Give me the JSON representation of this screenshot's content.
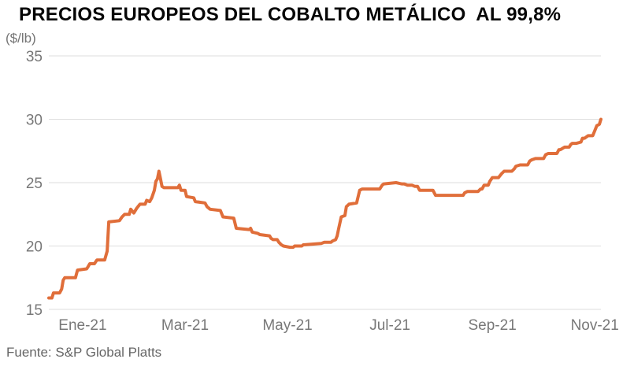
{
  "page": {
    "title": "PRECIOS EUROPEOS DEL COBALTO METÁLICO  AL 99,8%",
    "unit_label": "($/lb)",
    "source": "Fuente: S&P Global Platts"
  },
  "chart_data": {
    "type": "line",
    "title": "PRECIOS EUROPEOS DEL COBALTO METÁLICO AL 99,8%",
    "xlabel": "",
    "ylabel": "($/lb)",
    "series_name": "Precio europeo del cobalto metálico 99,8%",
    "line_color": "#E06E3A",
    "grid_color": "#DEDEDE",
    "label_color": "#787878",
    "legend": "none",
    "grid": "horizontal-only",
    "ylim": [
      15,
      35
    ],
    "y_ticks": [
      35,
      30,
      25,
      20,
      15
    ],
    "x_domain": [
      -0.66,
      10.12
    ],
    "y_domain": [
      15,
      35
    ],
    "x_unit": "months (0 = enero 2021, -0.66 ≈ mediados de diciembre 2020)",
    "x_ticks": [
      {
        "m": 0,
        "label": "Ene-21"
      },
      {
        "m": 2,
        "label": "Mar-21"
      },
      {
        "m": 4,
        "label": "May-21"
      },
      {
        "m": 6,
        "label": "Jul-21"
      },
      {
        "m": 8,
        "label": "Sep-21"
      },
      {
        "m": 10,
        "label": "Nov-21"
      }
    ],
    "points": [
      [
        -0.66,
        15.9
      ],
      [
        -0.6,
        15.9
      ],
      [
        -0.57,
        16.3
      ],
      [
        -0.45,
        16.3
      ],
      [
        -0.41,
        16.6
      ],
      [
        -0.38,
        17.3
      ],
      [
        -0.35,
        17.5
      ],
      [
        -0.14,
        17.5
      ],
      [
        -0.1,
        18.1
      ],
      [
        0.08,
        18.2
      ],
      [
        0.11,
        18.4
      ],
      [
        0.14,
        18.6
      ],
      [
        0.23,
        18.6
      ],
      [
        0.28,
        18.9
      ],
      [
        0.43,
        18.9
      ],
      [
        0.48,
        19.6
      ],
      [
        0.51,
        21.9
      ],
      [
        0.72,
        22.0
      ],
      [
        0.77,
        22.3
      ],
      [
        0.82,
        22.5
      ],
      [
        0.91,
        22.5
      ],
      [
        0.94,
        22.9
      ],
      [
        1.0,
        22.6
      ],
      [
        1.06,
        23.0
      ],
      [
        1.12,
        23.3
      ],
      [
        1.22,
        23.3
      ],
      [
        1.25,
        23.6
      ],
      [
        1.31,
        23.5
      ],
      [
        1.35,
        23.8
      ],
      [
        1.4,
        24.4
      ],
      [
        1.43,
        25.1
      ],
      [
        1.46,
        25.3
      ],
      [
        1.49,
        25.9
      ],
      [
        1.52,
        25.3
      ],
      [
        1.55,
        24.7
      ],
      [
        1.59,
        24.6
      ],
      [
        1.86,
        24.6
      ],
      [
        1.89,
        24.8
      ],
      [
        1.92,
        24.4
      ],
      [
        2.0,
        24.4
      ],
      [
        2.03,
        23.9
      ],
      [
        2.17,
        23.8
      ],
      [
        2.2,
        23.5
      ],
      [
        2.39,
        23.4
      ],
      [
        2.43,
        23.1
      ],
      [
        2.49,
        22.9
      ],
      [
        2.69,
        22.8
      ],
      [
        2.74,
        22.3
      ],
      [
        2.95,
        22.2
      ],
      [
        3.0,
        21.4
      ],
      [
        3.25,
        21.3
      ],
      [
        3.28,
        21.4
      ],
      [
        3.31,
        21.1
      ],
      [
        3.42,
        21.0
      ],
      [
        3.46,
        20.9
      ],
      [
        3.65,
        20.8
      ],
      [
        3.68,
        20.6
      ],
      [
        3.72,
        20.5
      ],
      [
        3.8,
        20.5
      ],
      [
        3.83,
        20.3
      ],
      [
        3.88,
        20.1
      ],
      [
        3.92,
        20.0
      ],
      [
        4.05,
        19.9
      ],
      [
        4.11,
        19.9
      ],
      [
        4.14,
        20.0
      ],
      [
        4.28,
        20.0
      ],
      [
        4.31,
        20.1
      ],
      [
        4.34,
        20.1
      ],
      [
        4.66,
        20.2
      ],
      [
        4.72,
        20.3
      ],
      [
        4.85,
        20.3
      ],
      [
        4.88,
        20.4
      ],
      [
        4.94,
        20.5
      ],
      [
        4.97,
        20.8
      ],
      [
        5.0,
        21.4
      ],
      [
        5.05,
        22.3
      ],
      [
        5.12,
        22.4
      ],
      [
        5.15,
        23.1
      ],
      [
        5.2,
        23.3
      ],
      [
        5.35,
        23.4
      ],
      [
        5.41,
        24.4
      ],
      [
        5.46,
        24.5
      ],
      [
        5.8,
        24.5
      ],
      [
        5.85,
        24.8
      ],
      [
        5.88,
        24.9
      ],
      [
        6.12,
        25.0
      ],
      [
        6.23,
        24.9
      ],
      [
        6.28,
        24.9
      ],
      [
        6.34,
        24.8
      ],
      [
        6.43,
        24.8
      ],
      [
        6.49,
        24.7
      ],
      [
        6.54,
        24.7
      ],
      [
        6.58,
        24.4
      ],
      [
        6.84,
        24.4
      ],
      [
        6.89,
        24.0
      ],
      [
        7.43,
        24.0
      ],
      [
        7.46,
        24.2
      ],
      [
        7.51,
        24.3
      ],
      [
        7.72,
        24.3
      ],
      [
        7.77,
        24.5
      ],
      [
        7.8,
        24.5
      ],
      [
        7.84,
        24.8
      ],
      [
        7.92,
        24.8
      ],
      [
        7.95,
        25.1
      ],
      [
        8.0,
        25.4
      ],
      [
        8.12,
        25.4
      ],
      [
        8.18,
        25.7
      ],
      [
        8.23,
        25.9
      ],
      [
        8.38,
        25.9
      ],
      [
        8.43,
        26.1
      ],
      [
        8.46,
        26.3
      ],
      [
        8.54,
        26.4
      ],
      [
        8.69,
        26.4
      ],
      [
        8.73,
        26.7
      ],
      [
        8.77,
        26.8
      ],
      [
        8.84,
        26.9
      ],
      [
        9.0,
        26.9
      ],
      [
        9.04,
        27.2
      ],
      [
        9.09,
        27.3
      ],
      [
        9.26,
        27.3
      ],
      [
        9.3,
        27.6
      ],
      [
        9.33,
        27.6
      ],
      [
        9.41,
        27.8
      ],
      [
        9.5,
        27.8
      ],
      [
        9.53,
        28.0
      ],
      [
        9.56,
        28.1
      ],
      [
        9.64,
        28.1
      ],
      [
        9.73,
        28.2
      ],
      [
        9.76,
        28.5
      ],
      [
        9.8,
        28.5
      ],
      [
        9.87,
        28.7
      ],
      [
        9.96,
        28.7
      ],
      [
        10.0,
        29.1
      ],
      [
        10.04,
        29.5
      ],
      [
        10.09,
        29.6
      ],
      [
        10.12,
        30.0
      ]
    ]
  }
}
